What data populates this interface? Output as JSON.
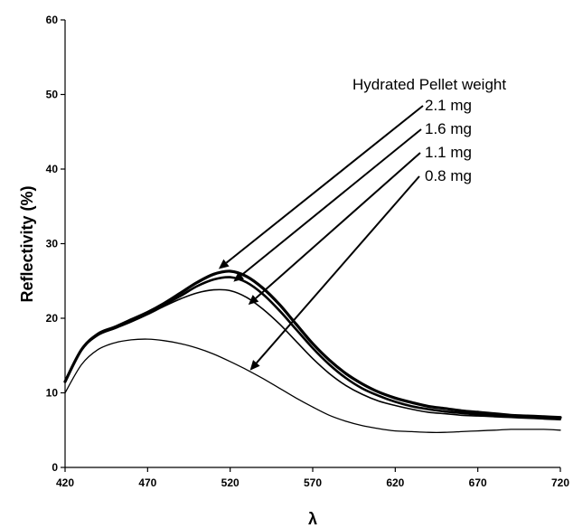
{
  "chart_data": {
    "type": "line",
    "title": "",
    "xlabel": "λ",
    "ylabel": "Reflectivity (%)",
    "xlim": [
      420,
      720
    ],
    "ylim": [
      0,
      60
    ],
    "x_ticks": [
      420,
      470,
      520,
      570,
      620,
      670,
      720
    ],
    "y_ticks": [
      0,
      10,
      20,
      30,
      40,
      50,
      60
    ],
    "grid": false,
    "legend_title": "Hydrated Pellet weight",
    "x": [
      420,
      430,
      440,
      450,
      460,
      470,
      480,
      490,
      500,
      510,
      520,
      530,
      540,
      550,
      560,
      570,
      580,
      590,
      600,
      610,
      620,
      630,
      640,
      650,
      660,
      670,
      680,
      690,
      700,
      710,
      720
    ],
    "series": [
      {
        "name": "2.1 mg",
        "color": "#000000",
        "values": [
          11.5,
          15.8,
          17.9,
          18.8,
          19.8,
          20.8,
          22.0,
          23.4,
          24.8,
          25.9,
          26.3,
          25.6,
          24.0,
          21.8,
          19.2,
          16.6,
          14.4,
          12.6,
          11.2,
          10.1,
          9.3,
          8.7,
          8.2,
          7.9,
          7.6,
          7.4,
          7.2,
          7.0,
          6.9,
          6.8,
          6.7
        ]
      },
      {
        "name": "1.6 mg",
        "color": "#000000",
        "values": [
          11.5,
          15.8,
          17.8,
          18.7,
          19.7,
          20.7,
          21.8,
          23.0,
          24.3,
          25.2,
          25.5,
          24.8,
          23.2,
          21.0,
          18.5,
          16.0,
          13.8,
          12.0,
          10.6,
          9.6,
          8.8,
          8.2,
          7.8,
          7.5,
          7.3,
          7.1,
          7.0,
          6.9,
          6.8,
          6.7,
          6.6
        ]
      },
      {
        "name": "1.1 mg",
        "color": "#000000",
        "values": [
          11.5,
          15.7,
          17.7,
          18.6,
          19.5,
          20.5,
          21.6,
          22.6,
          23.4,
          23.8,
          23.7,
          22.8,
          21.2,
          19.2,
          16.9,
          14.6,
          12.6,
          11.0,
          9.8,
          8.9,
          8.3,
          7.8,
          7.4,
          7.2,
          7.0,
          6.9,
          6.8,
          6.7,
          6.6,
          6.5,
          6.4
        ]
      },
      {
        "name": "0.8 mg",
        "color": "#000000",
        "values": [
          10.0,
          13.8,
          15.8,
          16.7,
          17.1,
          17.2,
          17.0,
          16.6,
          16.0,
          15.2,
          14.2,
          13.1,
          11.9,
          10.6,
          9.3,
          8.1,
          7.0,
          6.2,
          5.6,
          5.2,
          4.9,
          4.8,
          4.7,
          4.7,
          4.8,
          4.9,
          5.0,
          5.1,
          5.1,
          5.1,
          5.0
        ]
      }
    ]
  }
}
